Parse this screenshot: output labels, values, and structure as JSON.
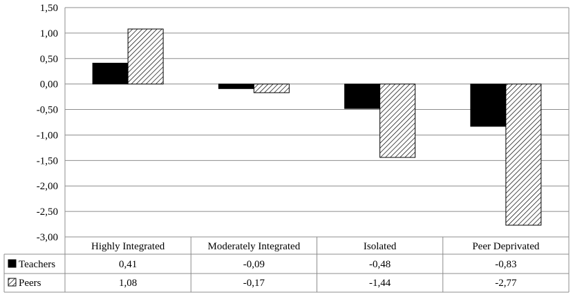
{
  "chart_data": {
    "type": "bar",
    "categories": [
      "Highly Integrated",
      "Moderately Integrated",
      "Isolated",
      "Peer Deprivated"
    ],
    "series": [
      {
        "name": "Teachers",
        "values": [
          0.41,
          -0.09,
          -0.48,
          -0.83
        ],
        "labels": [
          "0,41",
          "-0,09",
          "-0,48",
          "-0,83"
        ],
        "fill": "solid",
        "color": "#000000"
      },
      {
        "name": "Peers",
        "values": [
          1.08,
          -0.17,
          -1.44,
          -2.77
        ],
        "labels": [
          "1,08",
          "-0,17",
          "-1,44",
          "-2,77"
        ],
        "fill": "hatched",
        "color": "#000000"
      }
    ],
    "yticks": [
      1.5,
      1.0,
      0.5,
      0.0,
      -0.5,
      -1.0,
      -1.5,
      -2.0,
      -2.5,
      -3.0
    ],
    "ytick_labels": [
      "1,50",
      "1,00",
      "0,50",
      "0,00",
      "-0,50",
      "-1,00",
      "-1,50",
      "-2,00",
      "-2,50",
      "-3,00"
    ],
    "ylim": [
      -3.0,
      1.5
    ],
    "grid": true,
    "legend": "data-table-left",
    "title": "",
    "xlabel": "",
    "ylabel": ""
  }
}
